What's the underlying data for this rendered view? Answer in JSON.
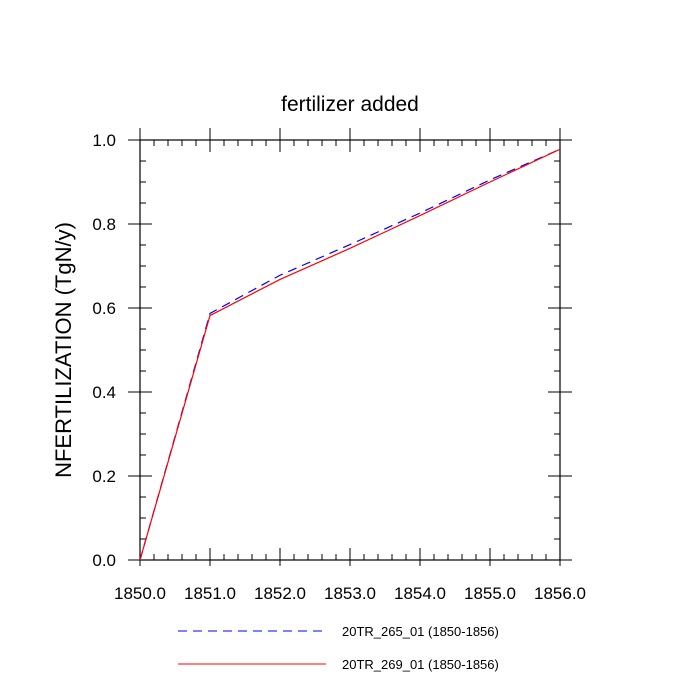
{
  "chart_data": {
    "type": "line",
    "title": "fertilizer added",
    "xlabel": "",
    "ylabel": "NFERTILIZATION  (TgN/y)",
    "xlim": [
      1850,
      1856
    ],
    "ylim": [
      0,
      1.0
    ],
    "x_ticks": [
      "1850.0",
      "1851.0",
      "1852.0",
      "1853.0",
      "1854.0",
      "1855.0",
      "1856.0"
    ],
    "y_ticks": [
      "0.0",
      "0.2",
      "0.4",
      "0.6",
      "0.8",
      "1.0"
    ],
    "x": [
      1850,
      1851,
      1852,
      1853,
      1854,
      1855,
      1856
    ],
    "series": [
      {
        "name": "20TR_265_01 (1850-1856)",
        "values": [
          0.0,
          0.587,
          0.678,
          0.751,
          0.826,
          0.905,
          0.978
        ],
        "color": "#0000ff",
        "dash": "dashed"
      },
      {
        "name": "20TR_269_01 (1850-1856)",
        "values": [
          0.0,
          0.582,
          0.668,
          0.742,
          0.82,
          0.9,
          0.978
        ],
        "color": "#ff0000",
        "dash": "solid"
      }
    ],
    "grid": false,
    "legend_position": "bottom"
  }
}
